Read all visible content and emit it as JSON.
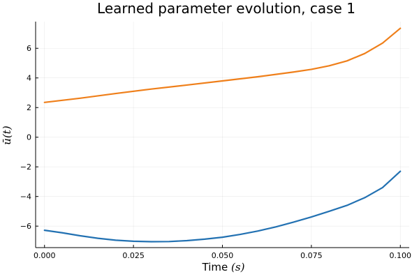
{
  "chart_data": {
    "type": "line",
    "title": "Learned parameter evolution, case 1",
    "xlabel_text": "Time ",
    "xlabel_unit": "(s)",
    "ylabel": "ū(t)",
    "xlim": [
      -0.0025,
      0.1025
    ],
    "ylim": [
      -7.45,
      7.8
    ],
    "x_ticks": [
      0.0,
      0.025,
      0.05,
      0.075,
      0.1
    ],
    "x_tick_labels": [
      "0.000",
      "0.025",
      "0.050",
      "0.075",
      "0.100"
    ],
    "y_ticks": [
      -6,
      -4,
      -2,
      0,
      2,
      4,
      6
    ],
    "y_tick_labels": [
      "−6",
      "−4",
      "−2",
      "0",
      "2",
      "4",
      "6"
    ],
    "grid": true,
    "legend": "none",
    "series": [
      {
        "color": "#ef7f1a",
        "x": [
          0.0,
          0.01,
          0.02,
          0.03,
          0.04,
          0.05,
          0.06,
          0.07,
          0.075,
          0.08,
          0.085,
          0.09,
          0.095,
          0.1
        ],
        "y": [
          2.35,
          2.63,
          2.95,
          3.25,
          3.52,
          3.8,
          4.08,
          4.4,
          4.58,
          4.82,
          5.15,
          5.65,
          6.35,
          7.35
        ]
      },
      {
        "color": "#2271b2",
        "x": [
          0.0,
          0.005,
          0.01,
          0.015,
          0.02,
          0.025,
          0.03,
          0.035,
          0.04,
          0.045,
          0.05,
          0.055,
          0.06,
          0.065,
          0.07,
          0.075,
          0.08,
          0.085,
          0.09,
          0.095,
          0.1
        ],
        "y": [
          -6.28,
          -6.45,
          -6.65,
          -6.82,
          -6.95,
          -7.02,
          -7.05,
          -7.04,
          -6.98,
          -6.88,
          -6.75,
          -6.56,
          -6.33,
          -6.05,
          -5.73,
          -5.38,
          -5.0,
          -4.6,
          -4.08,
          -3.4,
          -2.3
        ]
      }
    ]
  }
}
